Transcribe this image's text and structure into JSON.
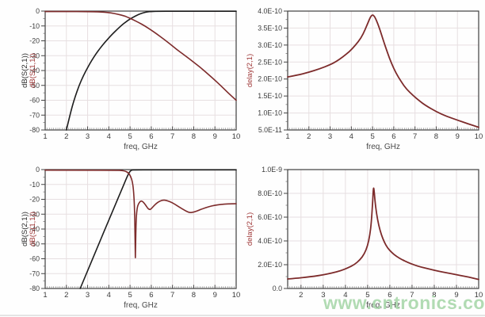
{
  "watermark": {
    "text": "www.cntronics.com",
    "color": "#a9d8ab"
  },
  "palette": {
    "grid": "#e7dfe1",
    "frame": "#3f3f3f",
    "black_trace": "#1e1e1e",
    "red_trace": "#7d2b2b",
    "ylabel_black": "#2b2b2b",
    "ylabel_red": "#a03a3a",
    "tick_text": "#3b3b3b",
    "watermark_green": "#a9d8ab"
  },
  "chart_data": [
    {
      "type": "line",
      "name": "s-parameters-wideband-highpass",
      "xlabel": "freq, GHz",
      "grid": true,
      "x": {
        "min": 1,
        "max": 10,
        "ticks": [
          1,
          2,
          3,
          4,
          5,
          6,
          7,
          8,
          9,
          10
        ],
        "minor_step": 0.1
      },
      "y": {
        "min": -80,
        "max": 0,
        "minor_step": 5,
        "ticks": [
          [
            0,
            "0"
          ],
          [
            -10,
            "-10"
          ],
          [
            -20,
            "-20"
          ],
          [
            -30,
            "-30"
          ],
          [
            -40,
            "-40"
          ],
          [
            -50,
            "-50"
          ],
          [
            -60,
            "-60"
          ],
          [
            -70,
            "-70"
          ],
          [
            -80,
            "-80"
          ]
        ]
      },
      "ylabels": [
        {
          "text": "dB(S(2,1))",
          "color": "#2b2b2b"
        },
        {
          "text": "dB(S(1,1))",
          "color": "#a03a3a"
        }
      ],
      "ylabel_x": [
        34,
        44
      ],
      "series": [
        {
          "name": "dB(S(2,1))",
          "color": "#1e1e1e",
          "width": 1.6,
          "points": [
            [
              2,
              -80
            ],
            [
              2.2,
              -68
            ],
            [
              2.4,
              -58
            ],
            [
              2.6,
              -50
            ],
            [
              2.8,
              -43.5
            ],
            [
              3.0,
              -38
            ],
            [
              3.2,
              -33
            ],
            [
              3.4,
              -28.6
            ],
            [
              3.6,
              -24.8
            ],
            [
              3.8,
              -21.2
            ],
            [
              4.0,
              -18
            ],
            [
              4.2,
              -15
            ],
            [
              4.4,
              -12.2
            ],
            [
              4.6,
              -9.6
            ],
            [
              4.8,
              -7.3
            ],
            [
              5.0,
              -5.3
            ],
            [
              5.2,
              -3.7
            ],
            [
              5.4,
              -2.3
            ],
            [
              5.6,
              -1.2
            ],
            [
              5.8,
              -0.5
            ],
            [
              6.0,
              -0.25
            ],
            [
              6.4,
              -0.1
            ],
            [
              7,
              -0.1
            ],
            [
              10,
              -0.1
            ]
          ]
        },
        {
          "name": "dB(S(1,1))",
          "color": "#7d2b2b",
          "width": 1.6,
          "points": [
            [
              1,
              -0.3
            ],
            [
              2,
              -0.3
            ],
            [
              3,
              -0.35
            ],
            [
              3.5,
              -0.5
            ],
            [
              3.8,
              -0.75
            ],
            [
              4.1,
              -1.2
            ],
            [
              4.4,
              -2
            ],
            [
              4.7,
              -3.1
            ],
            [
              4.9,
              -4.2
            ],
            [
              5.1,
              -5.5
            ],
            [
              5.4,
              -7.6
            ],
            [
              5.7,
              -10
            ],
            [
              6.0,
              -12.8
            ],
            [
              6.3,
              -15.8
            ],
            [
              6.6,
              -19
            ],
            [
              6.9,
              -22.3
            ],
            [
              7.2,
              -25.8
            ],
            [
              7.5,
              -29
            ],
            [
              7.8,
              -32.2
            ],
            [
              8.1,
              -35.5
            ],
            [
              8.4,
              -39
            ],
            [
              8.7,
              -42.7
            ],
            [
              9.0,
              -46.5
            ],
            [
              9.3,
              -50.5
            ],
            [
              9.6,
              -54.8
            ],
            [
              10,
              -60
            ]
          ]
        }
      ]
    },
    {
      "type": "line",
      "name": "group-delay-wideband",
      "xlabel": "freq, GHz",
      "grid": true,
      "x": {
        "min": 1,
        "max": 10,
        "ticks": [
          1,
          2,
          3,
          4,
          5,
          6,
          7,
          8,
          9,
          10
        ],
        "minor_step": 0.1
      },
      "y": {
        "min": 0.5,
        "max": 4.0,
        "minor_step": 0.25,
        "ticks": [
          [
            4.0,
            "4.0E-10"
          ],
          [
            3.5,
            "3.5E-10"
          ],
          [
            3.0,
            "3.0E-10"
          ],
          [
            2.5,
            "2.5E-10"
          ],
          [
            2.0,
            "2.0E-10"
          ],
          [
            1.5,
            "1.5E-10"
          ],
          [
            1.0,
            "1.0E-10"
          ],
          [
            0.5,
            "5.0E-11"
          ]
        ]
      },
      "ylabels": [
        {
          "text": "delay(2,1)",
          "color": "#a03a3a"
        }
      ],
      "ylabel_x": [
        12
      ],
      "series": [
        {
          "name": "delay(2,1)",
          "color": "#7d2b2b",
          "width": 1.8,
          "points": [
            [
              1,
              2.06
            ],
            [
              1.5,
              2.12
            ],
            [
              2,
              2.2
            ],
            [
              2.5,
              2.3
            ],
            [
              3,
              2.42
            ],
            [
              3.3,
              2.52
            ],
            [
              3.6,
              2.65
            ],
            [
              3.9,
              2.8
            ],
            [
              4.2,
              3.0
            ],
            [
              4.45,
              3.2
            ],
            [
              4.65,
              3.45
            ],
            [
              4.8,
              3.68
            ],
            [
              4.9,
              3.83
            ],
            [
              5.0,
              3.9
            ],
            [
              5.1,
              3.84
            ],
            [
              5.2,
              3.7
            ],
            [
              5.35,
              3.45
            ],
            [
              5.5,
              3.15
            ],
            [
              5.7,
              2.78
            ],
            [
              5.9,
              2.45
            ],
            [
              6.1,
              2.18
            ],
            [
              6.35,
              1.92
            ],
            [
              6.6,
              1.7
            ],
            [
              6.9,
              1.52
            ],
            [
              7.2,
              1.36
            ],
            [
              7.5,
              1.22
            ],
            [
              8.0,
              1.04
            ],
            [
              8.5,
              0.9
            ],
            [
              9.0,
              0.79
            ],
            [
              9.5,
              0.68
            ],
            [
              10,
              0.58
            ]
          ]
        }
      ]
    },
    {
      "type": "line",
      "name": "s-parameters-sharp-highpass-notch",
      "xlabel": "freq, GHz",
      "grid": true,
      "x": {
        "min": 1,
        "max": 10,
        "ticks": [
          1,
          2,
          3,
          4,
          5,
          6,
          7,
          8,
          9,
          10
        ],
        "minor_step": 0.1
      },
      "y": {
        "min": -80,
        "max": 0,
        "minor_step": 5,
        "ticks": [
          [
            0,
            "0"
          ],
          [
            -10,
            "-10"
          ],
          [
            -20,
            "-20"
          ],
          [
            -30,
            "-30"
          ],
          [
            -40,
            "-40"
          ],
          [
            -50,
            "-50"
          ],
          [
            -60,
            "-60"
          ],
          [
            -70,
            "-70"
          ],
          [
            -80,
            "-80"
          ]
        ]
      },
      "ylabels": [
        {
          "text": "dB(S(2,1))",
          "color": "#2b2b2b"
        },
        {
          "text": "dB(S(1,1))",
          "color": "#a03a3a"
        }
      ],
      "ylabel_x": [
        34,
        44
      ],
      "series": [
        {
          "name": "dB(S(2,1))",
          "color": "#1e1e1e",
          "width": 1.6,
          "points": [
            [
              2.65,
              -80
            ],
            [
              3.0,
              -68
            ],
            [
              3.5,
              -51
            ],
            [
              4.0,
              -34
            ],
            [
              4.4,
              -20.5
            ],
            [
              4.6,
              -13.7
            ],
            [
              4.75,
              -8.6
            ],
            [
              4.87,
              -4.5
            ],
            [
              4.97,
              -1.6
            ],
            [
              5.05,
              -0.4
            ],
            [
              5.2,
              -0.15
            ],
            [
              6,
              -0.15
            ],
            [
              10,
              -0.15
            ]
          ]
        },
        {
          "name": "dB(S(1,1))",
          "color": "#7d2b2b",
          "width": 1.6,
          "points": [
            [
              1,
              -0.35
            ],
            [
              4.4,
              -0.4
            ],
            [
              4.6,
              -0.55
            ],
            [
              4.78,
              -1
            ],
            [
              4.92,
              -2.2
            ],
            [
              5.02,
              -4.2
            ],
            [
              5.1,
              -7.5
            ],
            [
              5.16,
              -13
            ],
            [
              5.2,
              -22
            ],
            [
              5.225,
              -35
            ],
            [
              5.24,
              -50
            ],
            [
              5.25,
              -62
            ],
            [
              5.26,
              -52
            ],
            [
              5.275,
              -40
            ],
            [
              5.3,
              -30.5
            ],
            [
              5.34,
              -25.5
            ],
            [
              5.4,
              -22.8
            ],
            [
              5.5,
              -21
            ],
            [
              5.6,
              -21.5
            ],
            [
              5.72,
              -23.6
            ],
            [
              5.83,
              -26
            ],
            [
              5.92,
              -27
            ],
            [
              6.0,
              -26.4
            ],
            [
              6.1,
              -24.7
            ],
            [
              6.25,
              -22.6
            ],
            [
              6.4,
              -21.2
            ],
            [
              6.55,
              -20.5
            ],
            [
              6.7,
              -20.7
            ],
            [
              6.9,
              -21.7
            ],
            [
              7.1,
              -23.2
            ],
            [
              7.35,
              -25.5
            ],
            [
              7.6,
              -27.6
            ],
            [
              7.8,
              -29
            ],
            [
              8.0,
              -28.7
            ],
            [
              8.2,
              -27.6
            ],
            [
              8.45,
              -26.2
            ],
            [
              8.7,
              -25
            ],
            [
              9.0,
              -24
            ],
            [
              9.3,
              -23.4
            ],
            [
              9.6,
              -23.1
            ],
            [
              10,
              -23
            ]
          ]
        }
      ]
    },
    {
      "type": "line",
      "name": "group-delay-sharp",
      "xlabel": "freq, GHz",
      "grid": true,
      "x": {
        "min": 1.4,
        "max": 10,
        "ticks": [
          2,
          3,
          4,
          5,
          6,
          7,
          8,
          9,
          10
        ],
        "minor_step": 0.1
      },
      "y": {
        "min": 0,
        "max": 10,
        "minor_step": 1,
        "ticks": [
          [
            10,
            "1.0E-9"
          ],
          [
            8,
            "8.0E-10"
          ],
          [
            6,
            "6.0E-10"
          ],
          [
            4,
            "4.0E-10"
          ],
          [
            2,
            "2.0E-10"
          ],
          [
            0,
            "0.0"
          ]
        ]
      },
      "ylabels": [
        {
          "text": "delay(2,1)",
          "color": "#a03a3a"
        }
      ],
      "ylabel_x": [
        12
      ],
      "series": [
        {
          "name": "delay(2,1)",
          "color": "#7d2b2b",
          "width": 1.8,
          "points": [
            [
              1.4,
              0.8
            ],
            [
              1.8,
              0.86
            ],
            [
              2.2,
              0.94
            ],
            [
              2.6,
              1.03
            ],
            [
              3.0,
              1.15
            ],
            [
              3.4,
              1.3
            ],
            [
              3.8,
              1.5
            ],
            [
              4.1,
              1.72
            ],
            [
              4.4,
              2.0
            ],
            [
              4.65,
              2.4
            ],
            [
              4.85,
              2.9
            ],
            [
              5.0,
              3.6
            ],
            [
              5.1,
              4.5
            ],
            [
              5.17,
              5.6
            ],
            [
              5.22,
              7.0
            ],
            [
              5.25,
              8.2
            ],
            [
              5.27,
              8.5
            ],
            [
              5.29,
              8.3
            ],
            [
              5.33,
              7.4
            ],
            [
              5.4,
              6.3
            ],
            [
              5.5,
              5.3
            ],
            [
              5.62,
              4.5
            ],
            [
              5.75,
              3.9
            ],
            [
              5.9,
              3.4
            ],
            [
              6.1,
              3.0
            ],
            [
              6.3,
              2.7
            ],
            [
              6.55,
              2.42
            ],
            [
              6.8,
              2.2
            ],
            [
              7.1,
              1.98
            ],
            [
              7.4,
              1.8
            ],
            [
              7.8,
              1.62
            ],
            [
              8.2,
              1.45
            ],
            [
              8.6,
              1.3
            ],
            [
              9.0,
              1.16
            ],
            [
              9.4,
              1.02
            ],
            [
              9.7,
              0.9
            ],
            [
              10,
              0.76
            ]
          ]
        }
      ]
    }
  ]
}
